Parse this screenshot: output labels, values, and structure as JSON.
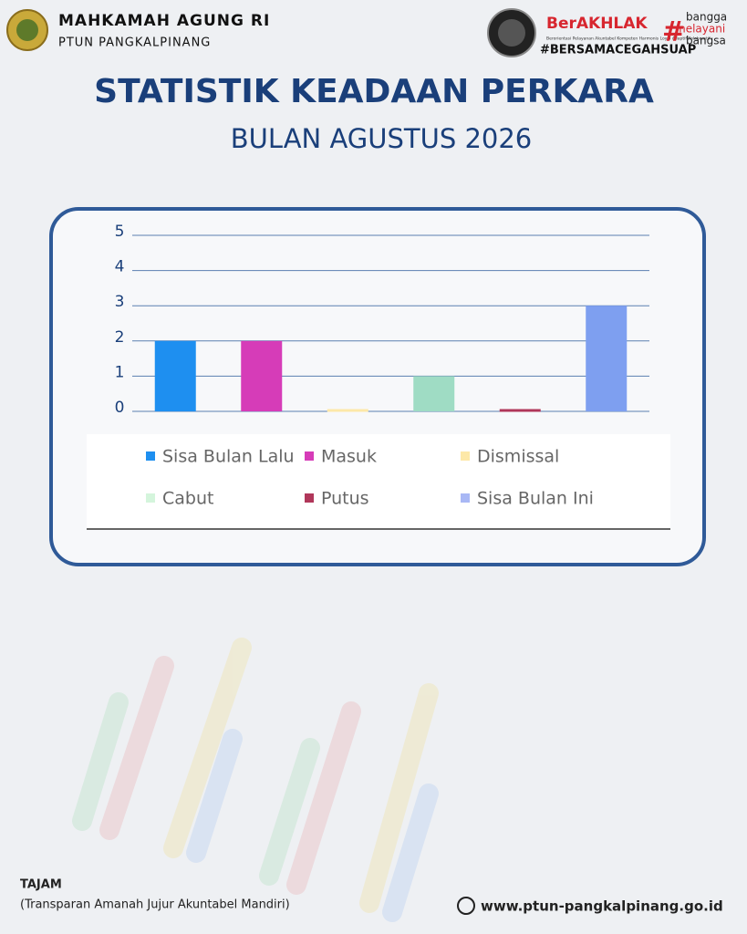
{
  "header": {
    "org": "MAHKAMAH AGUNG RI",
    "unit": "PTUN PANGKALPINANG",
    "berakhlak": "BerAKHLAK",
    "berakhlak_sub": "Berorientasi Pelayanan Akuntabel Kompeten Harmonis Loyal Adaptif Kolaboratif",
    "bangga": [
      "bangga",
      "melayani",
      "bangsa"
    ],
    "hashtag": "#BERSAMACEGAHSUAP"
  },
  "chart_data": {
    "type": "bar",
    "title": "STATISTIK KEADAAN PERKARA",
    "subtitle": "BULAN AGUSTUS 2026",
    "categories": [
      "Sisa Bulan Lalu",
      "Masuk",
      "Dismissal",
      "Cabut",
      "Putus",
      "Sisa Bulan Ini"
    ],
    "values": [
      2,
      2,
      0,
      1,
      0,
      3
    ],
    "colors": [
      "#1e8ff0",
      "#d63cb8",
      "#fde8a8",
      "#9fdcc4",
      "#b0375a",
      "#7e9ff0"
    ],
    "legend_colors": [
      "#1e8ff0",
      "#d63cb8",
      "#fde8a8",
      "#d4f5dc",
      "#b0375a",
      "#a9b8f5"
    ],
    "ylim": [
      0,
      5
    ],
    "yticks": [
      0,
      1,
      2,
      3,
      4,
      5
    ],
    "grid": true,
    "legend": "bottom"
  },
  "footer": {
    "motto": "TAJAM",
    "motto_full": "(Transparan Amanah Jujur Akuntabel Mandiri)",
    "website": "www.ptun-pangkalpinang.go.id"
  }
}
